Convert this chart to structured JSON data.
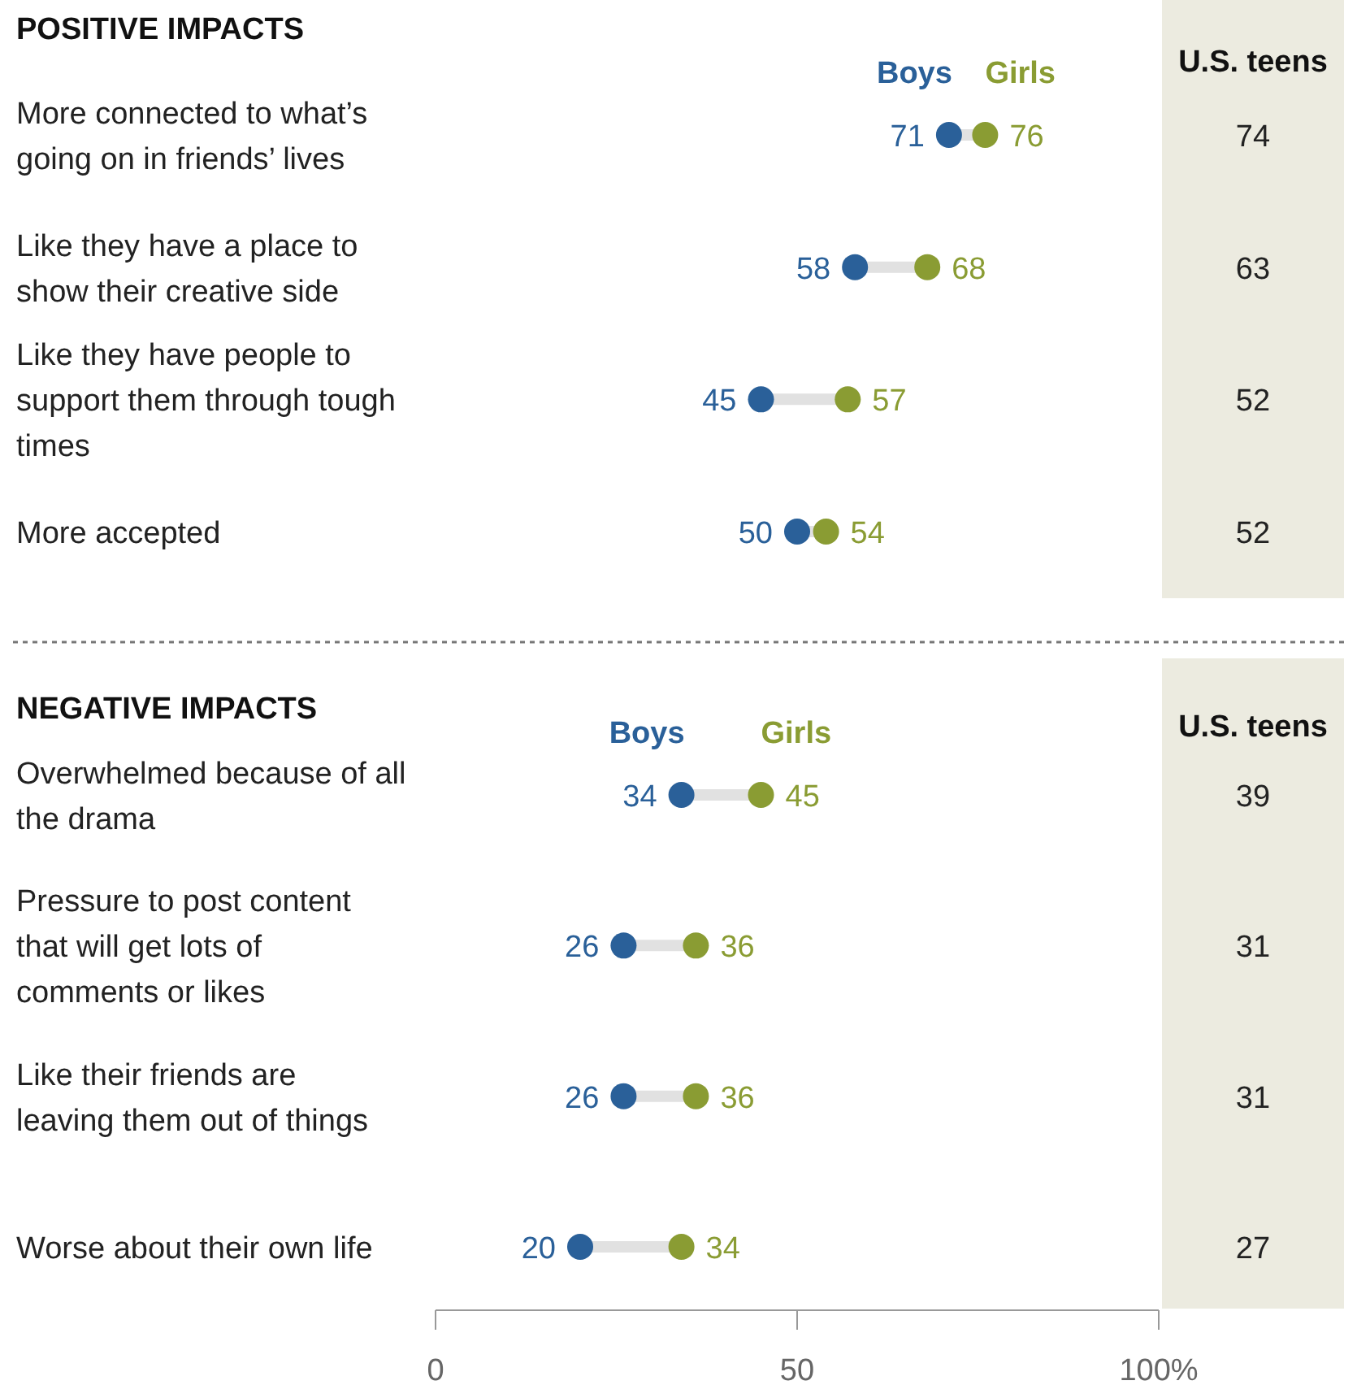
{
  "chart_data": [
    {
      "type": "scatter",
      "title": "POSITIVE IMPACTS",
      "categories": [
        "More connected to what’s going on in friends’ lives",
        "Like they have a place to show their creative side",
        "Like they have people to support them through tough times",
        "More accepted"
      ],
      "series": [
        {
          "name": "Boys",
          "color": "#2a6099",
          "values": [
            71,
            58,
            45,
            50
          ]
        },
        {
          "name": "Girls",
          "color": "#8a9c33",
          "values": [
            76,
            68,
            57,
            54
          ]
        }
      ],
      "xlim": [
        0,
        100
      ],
      "tick_labels": "y",
      "data_labels": true,
      "orientation": "horizontal"
    },
    {
      "type": "other",
      "title": "U.S. teens",
      "categories": [
        null,
        null,
        null,
        null
      ],
      "values": [
        74,
        63,
        52,
        52
      ],
      "data_labels": true
    },
    {
      "type": "scatter",
      "title": "NEGATIVE IMPACTS",
      "categories": [
        "Overwhelmed because of all the drama",
        "Pressure to post content that will get lots of comments or likes",
        "Like their friends are leaving them out of things",
        "Worse about their own life"
      ],
      "series": [
        {
          "name": "Boys",
          "color": "#2a6099",
          "values": [
            34,
            26,
            26,
            20
          ]
        },
        {
          "name": "Girls",
          "color": "#8a9c33",
          "values": [
            45,
            36,
            36,
            34
          ]
        }
      ],
      "xlim": [
        0,
        100
      ],
      "xticks": [
        0,
        50,
        {
          "value": 100,
          "label": "100%"
        }
      ],
      "data_labels": true,
      "orientation": "horizontal"
    },
    {
      "type": "other",
      "title": "U.S. teens",
      "categories": [
        null,
        null,
        null,
        null
      ],
      "values": [
        39,
        31,
        31,
        27
      ],
      "data_labels": true
    }
  ]
}
